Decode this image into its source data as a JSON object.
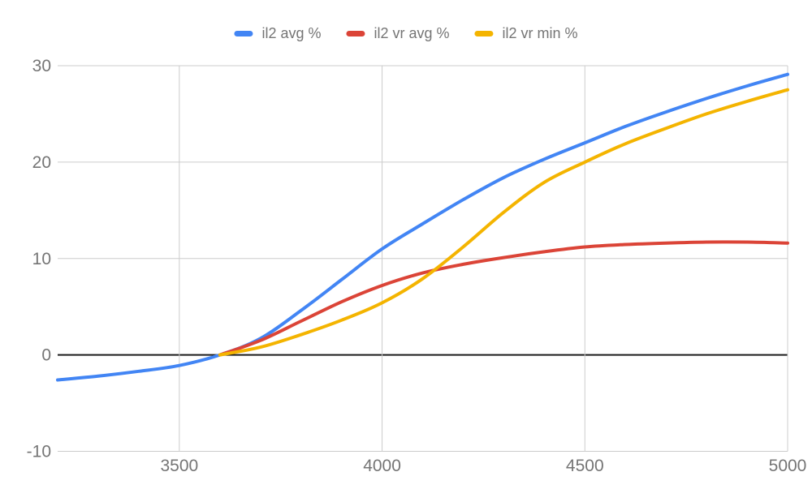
{
  "page": {
    "background": "#ffffff"
  },
  "legend": {
    "items": [
      {
        "label": "il2 avg %",
        "color": "#4285F4"
      },
      {
        "label": "il2 vr avg %",
        "color": "#DB4437"
      },
      {
        "label": "il2 vr min %",
        "color": "#F4B400"
      }
    ]
  },
  "chart_data": {
    "type": "line",
    "title": "",
    "xlabel": "",
    "ylabel": "",
    "xlim": [
      3200,
      5000
    ],
    "ylim": [
      -10,
      30
    ],
    "x_ticks": [
      "3500",
      "4000",
      "4500",
      "5000"
    ],
    "x_tick_values": [
      3500,
      4000,
      4500,
      5000
    ],
    "y_ticks": [
      "-10",
      "0",
      "10",
      "20",
      "30"
    ],
    "y_tick_values": [
      -10,
      0,
      10,
      20,
      30
    ],
    "grid": true,
    "smooth": true,
    "legend_position": "top",
    "line_width": 4,
    "grid_color": "#cccccc",
    "zero_line_color": "#1a1a1a",
    "axis_text_color": "#757575",
    "axis_font_size": 21,
    "series": [
      {
        "name": "il2 avg %",
        "color": "#4285F4",
        "points": [
          [
            3200,
            -2.6
          ],
          [
            3300,
            -2.2
          ],
          [
            3400,
            -1.7
          ],
          [
            3500,
            -1.1
          ],
          [
            3600,
            0
          ],
          [
            3700,
            1.7
          ],
          [
            3800,
            4.6
          ],
          [
            3900,
            7.8
          ],
          [
            4000,
            11
          ],
          [
            4100,
            13.6
          ],
          [
            4200,
            16.1
          ],
          [
            4300,
            18.4
          ],
          [
            4400,
            20.3
          ],
          [
            4500,
            22
          ],
          [
            4600,
            23.7
          ],
          [
            4700,
            25.2
          ],
          [
            4800,
            26.6
          ],
          [
            4900,
            27.9
          ],
          [
            5000,
            29.1
          ]
        ]
      },
      {
        "name": "il2 vr avg %",
        "color": "#DB4437",
        "points": [
          [
            3600,
            0
          ],
          [
            3700,
            1.5
          ],
          [
            3800,
            3.5
          ],
          [
            3900,
            5.5
          ],
          [
            4000,
            7.2
          ],
          [
            4100,
            8.5
          ],
          [
            4200,
            9.4
          ],
          [
            4300,
            10.1
          ],
          [
            4400,
            10.7
          ],
          [
            4500,
            11.2
          ],
          [
            4600,
            11.45
          ],
          [
            4700,
            11.6
          ],
          [
            4800,
            11.7
          ],
          [
            4900,
            11.7
          ],
          [
            5000,
            11.6
          ]
        ]
      },
      {
        "name": "il2 vr min %",
        "color": "#F4B400",
        "points": [
          [
            3600,
            0
          ],
          [
            3700,
            0.8
          ],
          [
            3800,
            2.1
          ],
          [
            3900,
            3.6
          ],
          [
            4000,
            5.4
          ],
          [
            4100,
            7.9
          ],
          [
            4200,
            11.2
          ],
          [
            4300,
            14.8
          ],
          [
            4400,
            17.9
          ],
          [
            4500,
            20
          ],
          [
            4600,
            21.9
          ],
          [
            4700,
            23.5
          ],
          [
            4800,
            25
          ],
          [
            4900,
            26.3
          ],
          [
            5000,
            27.5
          ]
        ]
      }
    ]
  }
}
